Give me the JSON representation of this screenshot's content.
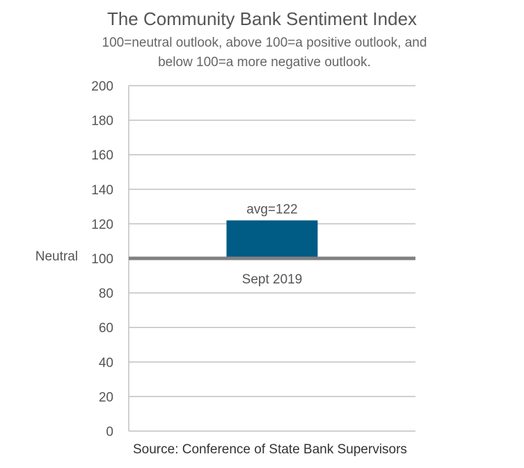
{
  "chart_data": {
    "type": "bar",
    "title": "The Community Bank Sentiment Index",
    "subtitle_lines": [
      "100=neutral outlook, above 100=a positive outlook, and",
      "below 100=a more negative outlook."
    ],
    "categories": [
      "Sept 2019"
    ],
    "values": [
      122
    ],
    "baseline": 100,
    "baseline_label": "Neutral",
    "data_label": "avg=122",
    "ylim": [
      0,
      200
    ],
    "yticks": [
      0,
      20,
      40,
      60,
      80,
      100,
      120,
      140,
      160,
      180,
      200
    ],
    "grid": true,
    "colors": {
      "bar": "#005b85",
      "baseline": "#808080",
      "grid": "#c0c0c0"
    },
    "source": "Source: Conference of State Bank Supervisors"
  }
}
